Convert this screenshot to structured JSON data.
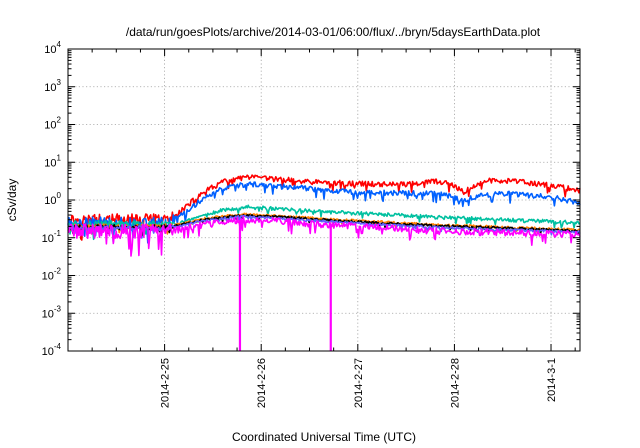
{
  "chart_data": {
    "type": "line",
    "title": "/data/run/goesPlots/archive/2014-03-01/06:00/flux/../bryn/5daysEarthData.plot",
    "xlabel": "Coordinated Universal Time (UTC)",
    "ylabel": "cSv/day",
    "y_scale": "log",
    "ylim": [
      0.0001,
      10000
    ],
    "x_range_days": [
      0,
      5.3
    ],
    "x_axis_origin": "2014-02-24 00:00 UTC",
    "grid": true,
    "legend": "none",
    "x_ticks": [
      {
        "label": "2014-2-25",
        "x": 1
      },
      {
        "label": "2014-2-26",
        "x": 2
      },
      {
        "label": "2014-2-27",
        "x": 3
      },
      {
        "label": "2014-2-28",
        "x": 4
      },
      {
        "label": "2014-3-1",
        "x": 5
      }
    ],
    "y_ticks": [
      {
        "base": "10",
        "exp": "-4",
        "value": 0.0001
      },
      {
        "base": "10",
        "exp": "-3",
        "value": 0.001
      },
      {
        "base": "10",
        "exp": "-2",
        "value": 0.01
      },
      {
        "base": "10",
        "exp": "-1",
        "value": 0.1
      },
      {
        "base": "10",
        "exp": "0",
        "value": 1
      },
      {
        "base": "10",
        "exp": "1",
        "value": 10
      },
      {
        "base": "10",
        "exp": "2",
        "value": 100
      },
      {
        "base": "10",
        "exp": "3",
        "value": 1000
      },
      {
        "base": "10",
        "exp": "4",
        "value": 10000
      }
    ],
    "series": [
      {
        "color": "#ff0000",
        "noise": 0.07,
        "points": [
          [
            0,
            0.3
          ],
          [
            1.05,
            0.3
          ],
          [
            1.2,
            0.6
          ],
          [
            1.4,
            1.6
          ],
          [
            1.6,
            3.0
          ],
          [
            1.85,
            4.0
          ],
          [
            2.2,
            3.5
          ],
          [
            2.5,
            3.0
          ],
          [
            3.0,
            2.7
          ],
          [
            3.5,
            2.6
          ],
          [
            3.7,
            2.9
          ],
          [
            3.8,
            3.2
          ],
          [
            3.95,
            2.6
          ],
          [
            4.1,
            1.6
          ],
          [
            4.2,
            2.3
          ],
          [
            4.35,
            3.3
          ],
          [
            4.6,
            3.2
          ],
          [
            5.0,
            2.4
          ],
          [
            5.3,
            1.8
          ]
        ]
      },
      {
        "color": "#0060ff",
        "noise": 0.07,
        "points": [
          [
            0,
            0.25
          ],
          [
            1.05,
            0.25
          ],
          [
            1.2,
            0.45
          ],
          [
            1.4,
            1.1
          ],
          [
            1.6,
            2.0
          ],
          [
            1.85,
            2.6
          ],
          [
            2.2,
            2.3
          ],
          [
            2.5,
            2.0
          ],
          [
            3.0,
            1.6
          ],
          [
            3.5,
            1.5
          ],
          [
            3.8,
            1.5
          ],
          [
            3.95,
            1.3
          ],
          [
            4.1,
            0.95
          ],
          [
            4.25,
            1.3
          ],
          [
            4.5,
            1.5
          ],
          [
            5.0,
            1.2
          ],
          [
            5.3,
            0.85
          ]
        ]
      },
      {
        "color": "#00c0a0",
        "noise": 0.05,
        "points": [
          [
            0,
            0.22
          ],
          [
            1.05,
            0.22
          ],
          [
            1.3,
            0.3
          ],
          [
            1.6,
            0.55
          ],
          [
            1.85,
            0.65
          ],
          [
            2.3,
            0.55
          ],
          [
            2.7,
            0.48
          ],
          [
            3.2,
            0.42
          ],
          [
            3.7,
            0.36
          ],
          [
            4.2,
            0.32
          ],
          [
            4.8,
            0.28
          ],
          [
            5.3,
            0.25
          ]
        ]
      },
      {
        "color": "#ff8000",
        "noise": 0.03,
        "points": [
          [
            0,
            0.2
          ],
          [
            1.05,
            0.2
          ],
          [
            1.4,
            0.32
          ],
          [
            1.8,
            0.42
          ],
          [
            2.3,
            0.36
          ],
          [
            2.8,
            0.3
          ],
          [
            3.3,
            0.26
          ],
          [
            3.8,
            0.22
          ],
          [
            4.3,
            0.2
          ],
          [
            4.8,
            0.18
          ],
          [
            5.3,
            0.16
          ]
        ]
      },
      {
        "color": "#000000",
        "noise": 0.03,
        "points": [
          [
            0,
            0.19
          ],
          [
            1.05,
            0.19
          ],
          [
            1.4,
            0.3
          ],
          [
            1.8,
            0.4
          ],
          [
            2.3,
            0.34
          ],
          [
            2.8,
            0.28
          ],
          [
            3.3,
            0.24
          ],
          [
            3.8,
            0.21
          ],
          [
            4.3,
            0.19
          ],
          [
            4.8,
            0.17
          ],
          [
            5.3,
            0.15
          ]
        ]
      },
      {
        "color": "#6060ff",
        "noise": 0.03,
        "points": [
          [
            0,
            0.18
          ],
          [
            1.05,
            0.18
          ],
          [
            1.4,
            0.28
          ],
          [
            1.8,
            0.37
          ],
          [
            2.3,
            0.31
          ],
          [
            2.8,
            0.26
          ],
          [
            3.3,
            0.22
          ],
          [
            3.8,
            0.19
          ],
          [
            4.3,
            0.17
          ],
          [
            4.8,
            0.155
          ],
          [
            5.3,
            0.14
          ]
        ]
      },
      {
        "color": "#ff00ff",
        "noise": 0.09,
        "points": [
          [
            0,
            0.15
          ],
          [
            1.05,
            0.15
          ],
          [
            1.4,
            0.22
          ],
          [
            1.8,
            0.3
          ],
          [
            2.3,
            0.26
          ],
          [
            2.8,
            0.21
          ],
          [
            3.3,
            0.18
          ],
          [
            3.8,
            0.15
          ],
          [
            4.3,
            0.14
          ],
          [
            4.8,
            0.13
          ],
          [
            5.3,
            0.12
          ]
        ],
        "dropouts": [
          1.78,
          2.72
        ]
      }
    ]
  }
}
